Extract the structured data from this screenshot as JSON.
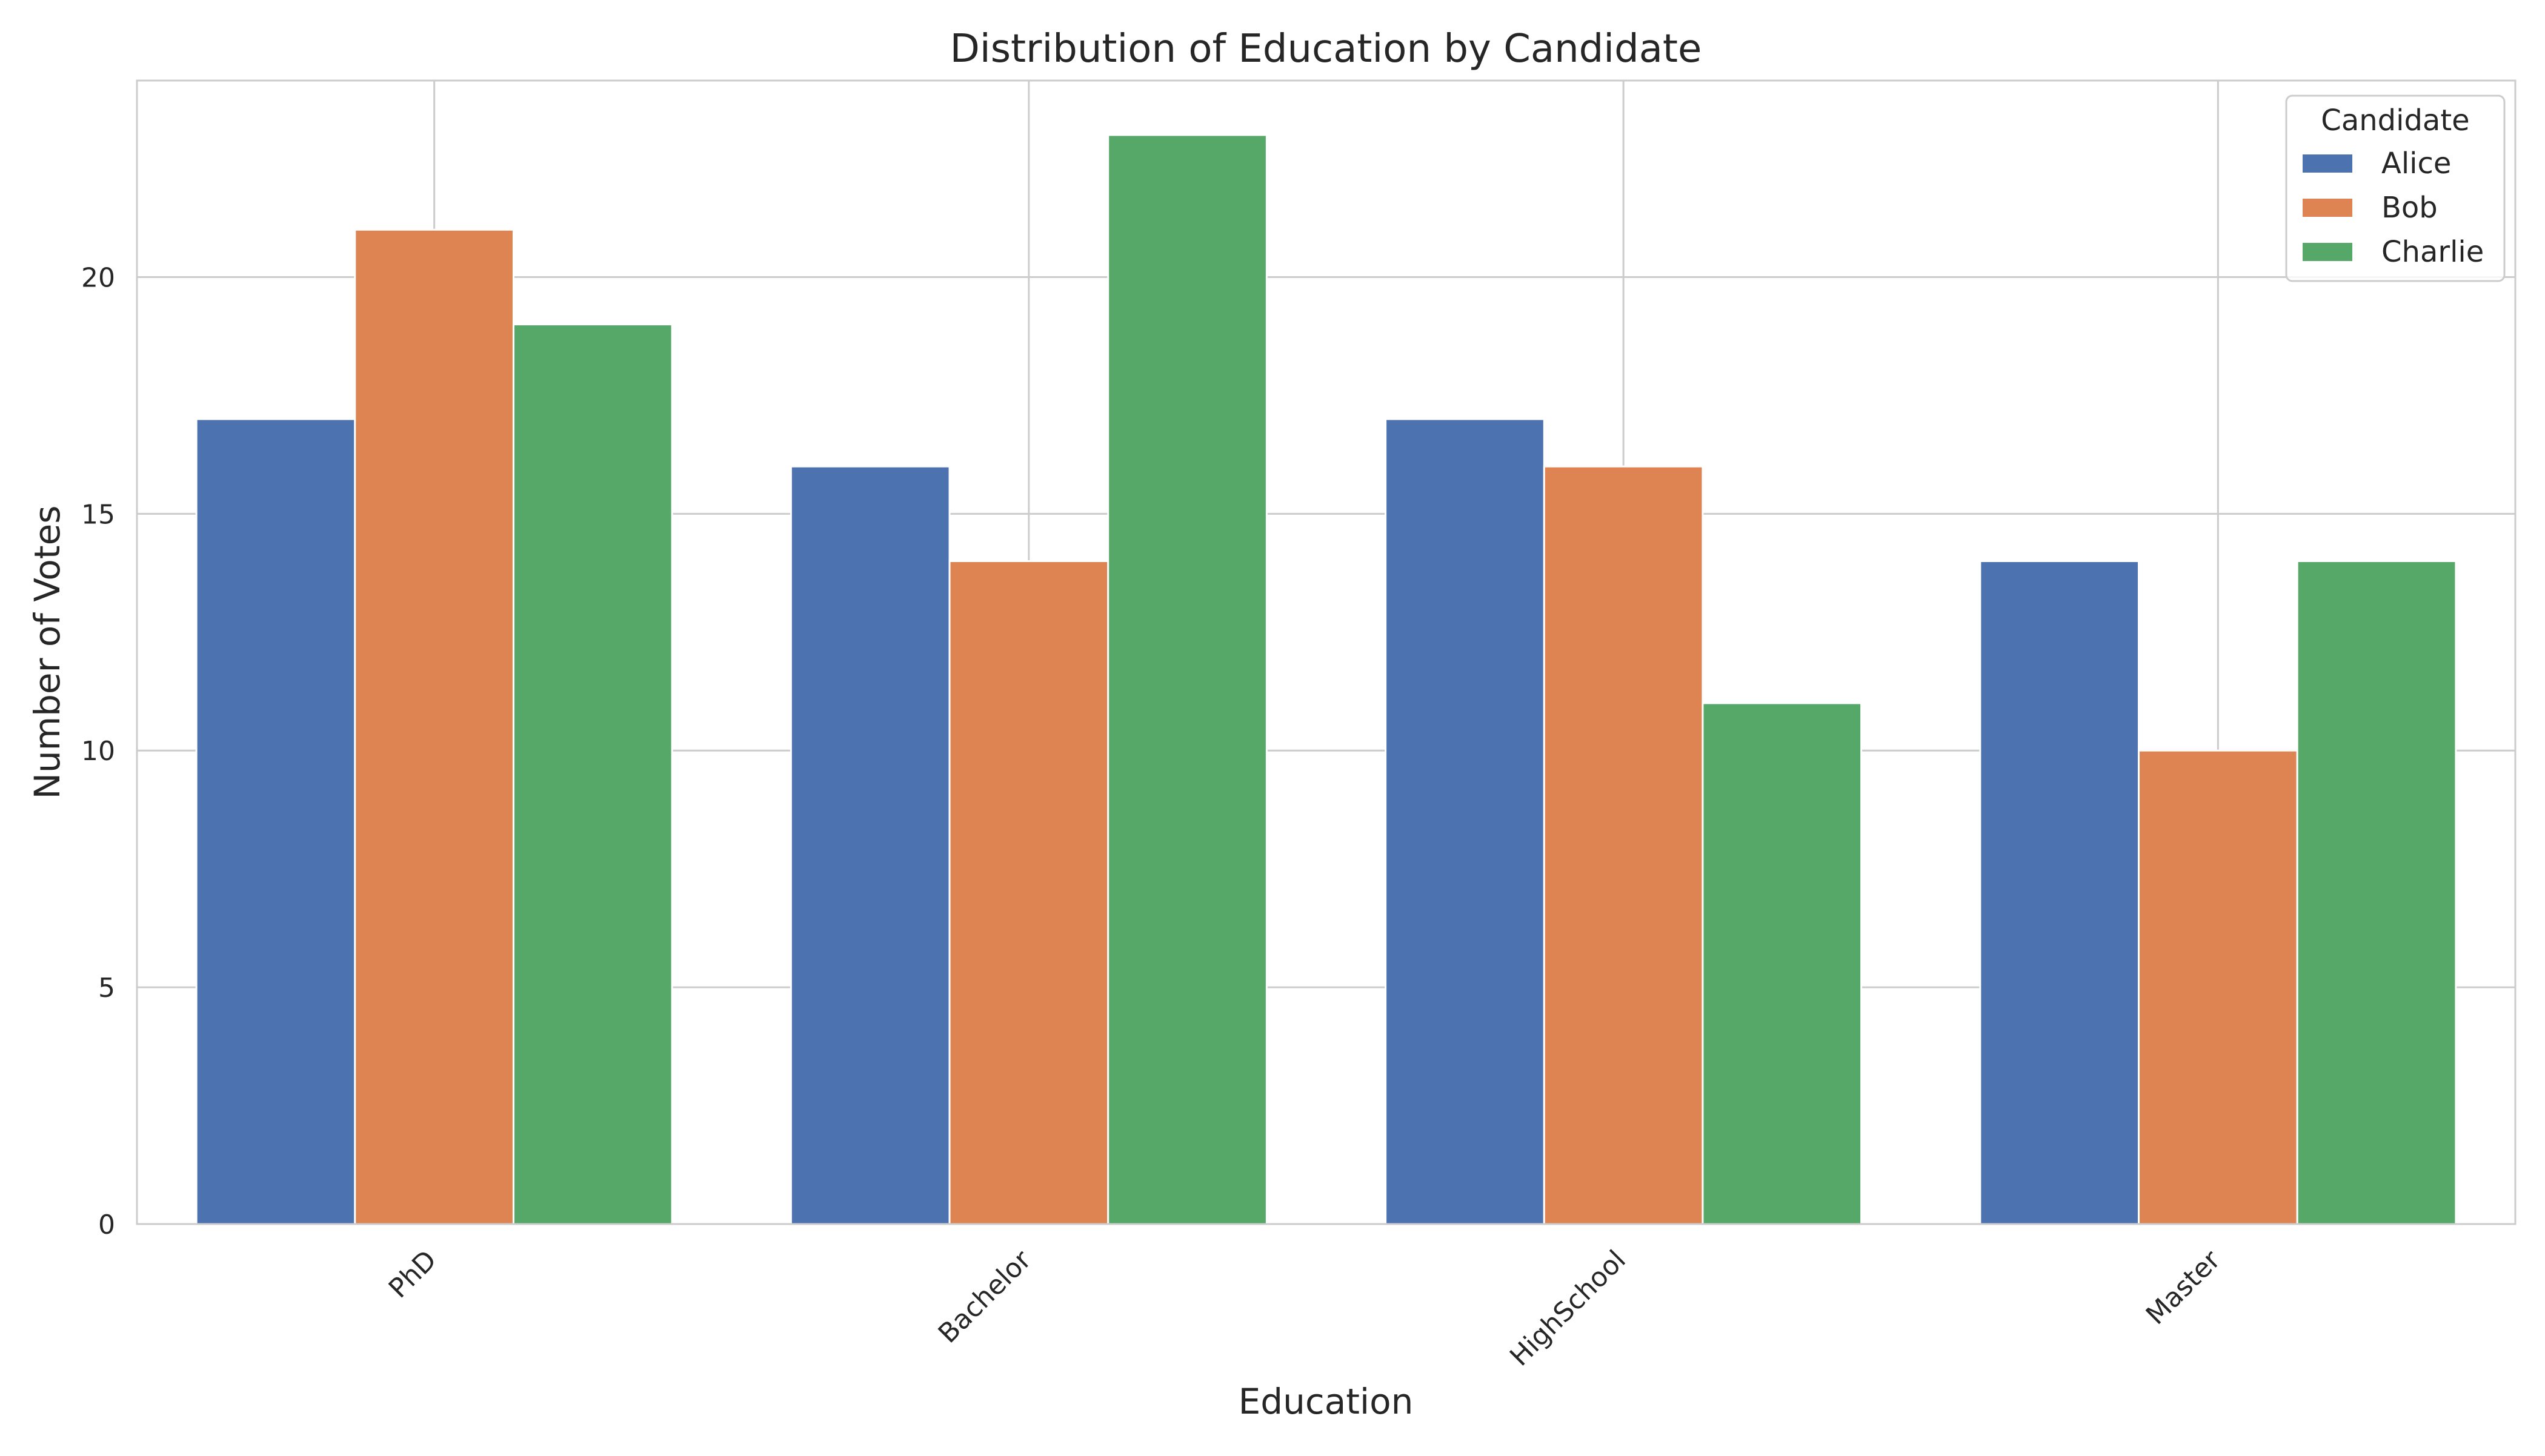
{
  "chart_data": {
    "type": "bar",
    "title": "Distribution of Education by Candidate",
    "xlabel": "Education",
    "ylabel": "Number of Votes",
    "categories": [
      "PhD",
      "Bachelor",
      "HighSchool",
      "Master"
    ],
    "series": [
      {
        "name": "Alice",
        "values": [
          17,
          16,
          17,
          14
        ],
        "color": "#4c72b0"
      },
      {
        "name": "Bob",
        "values": [
          21,
          14,
          16,
          10
        ],
        "color": "#dd8452"
      },
      {
        "name": "Charlie",
        "values": [
          19,
          23,
          11,
          14
        ],
        "color": "#55a868"
      }
    ],
    "ylim": [
      0,
      24.15
    ],
    "yticks": [
      0,
      5,
      10,
      15,
      20
    ],
    "grid": true,
    "legend": {
      "title": "Candidate",
      "placement": "top-right"
    }
  },
  "colors": {
    "grid": "#cccccc",
    "axes_edge": "#cccccc",
    "text": "#262626"
  }
}
